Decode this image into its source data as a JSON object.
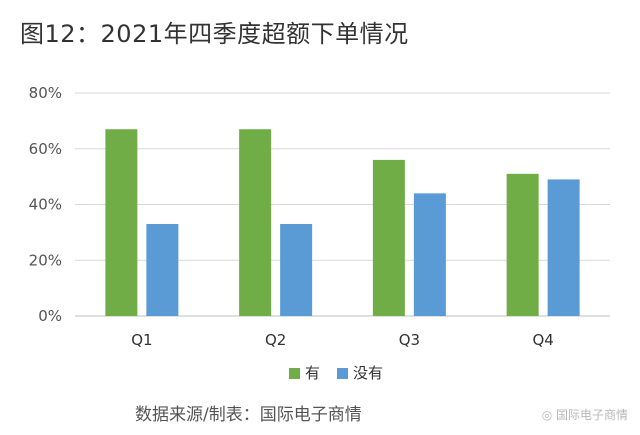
{
  "chart_data": {
    "type": "bar",
    "title": "图12：2021年四季度超额下单情况",
    "categories": [
      "Q1",
      "Q2",
      "Q3",
      "Q4"
    ],
    "series": [
      {
        "name": "有",
        "values": [
          67,
          67,
          56,
          51
        ],
        "color": "#70ad47"
      },
      {
        "name": "没有",
        "values": [
          33,
          33,
          44,
          49
        ],
        "color": "#5b9bd5"
      }
    ],
    "ylim": [
      0,
      80
    ],
    "yticks": [
      "0%",
      "20%",
      "40%",
      "60%",
      "80%"
    ],
    "grid": true,
    "legend": "bottom"
  },
  "source": "数据来源/制表：国际电子商情",
  "watermark": "国际电子商情"
}
